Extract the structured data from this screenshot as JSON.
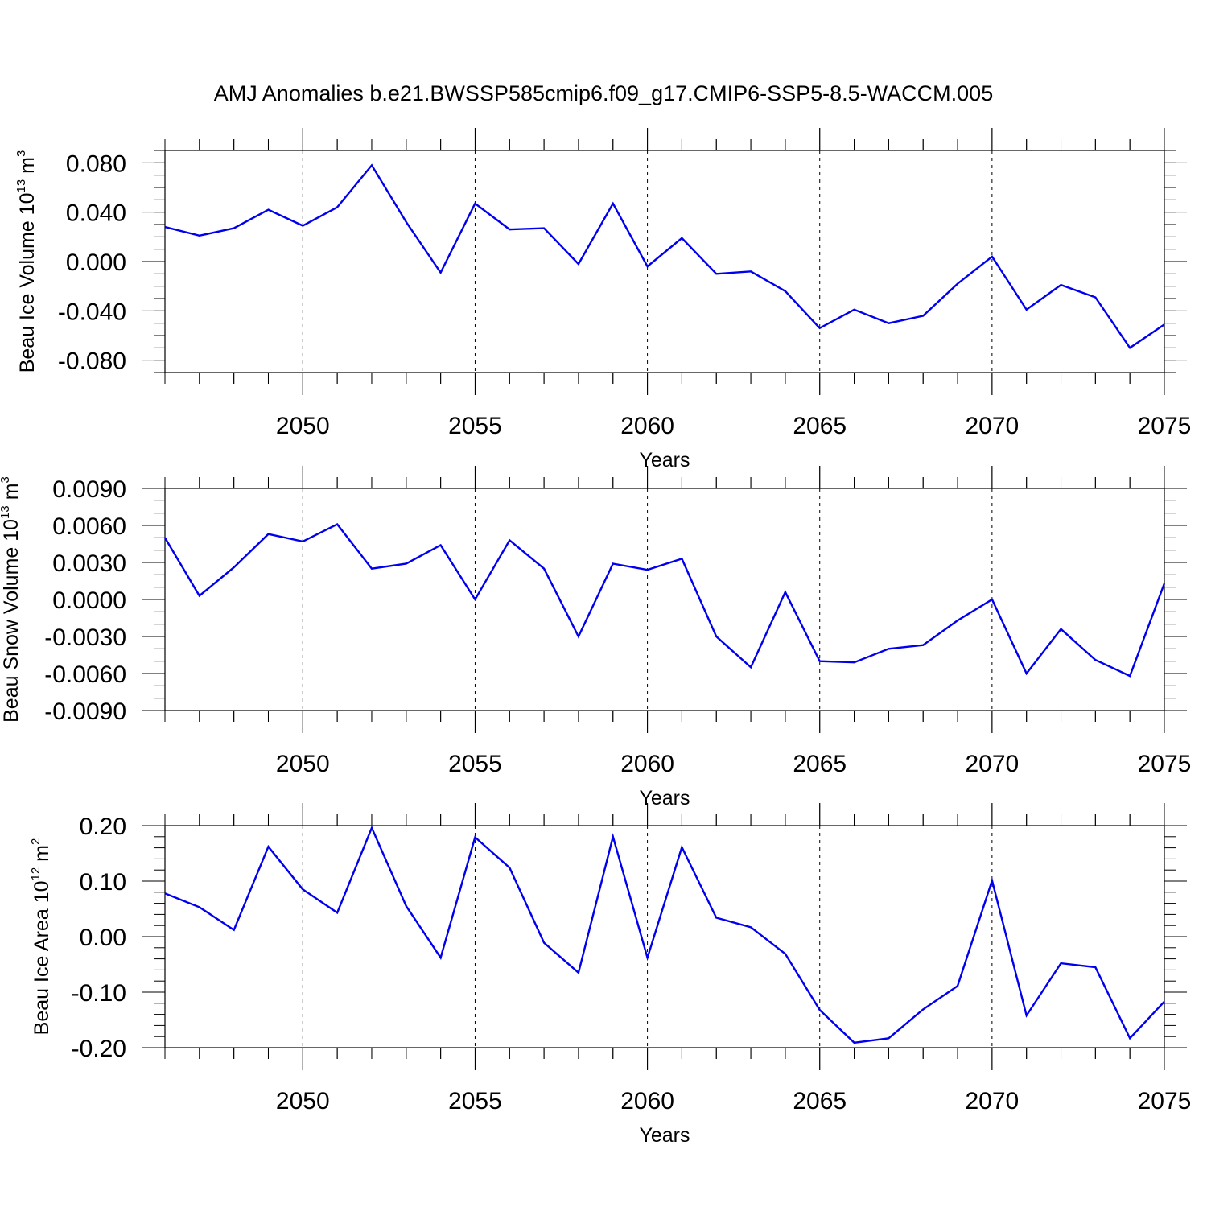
{
  "chart_data": [
    {
      "type": "line",
      "title": "AMJ Anomalies b.e21.BWSSP585cmip6.f09_g17.CMIP6-SSP5-8.5-WACCM.005",
      "xlabel": "Years",
      "ylabel": {
        "prefix": "Beau Ice Volume 10",
        "exp": "13",
        "unit": " m",
        "unit_exp": "3"
      },
      "xlim": [
        2046,
        2075
      ],
      "ylim": [
        -0.09,
        0.09
      ],
      "xticks": [
        2050,
        2055,
        2060,
        2065,
        2070,
        2075
      ],
      "yticks": [
        -0.08,
        -0.04,
        0.0,
        0.04,
        0.08
      ],
      "yticklabels": [
        "-0.080",
        "-0.040",
        "0.000",
        "0.040",
        "0.080"
      ],
      "y_minor_step": 0.01,
      "gridlines_x": [
        2050,
        2055,
        2060,
        2065,
        2070
      ],
      "line_color": "#0000ee",
      "series": [
        {
          "name": "Beau Ice Volume",
          "x": [
            2046,
            2047,
            2048,
            2049,
            2050,
            2051,
            2052,
            2053,
            2054,
            2055,
            2056,
            2057,
            2058,
            2059,
            2060,
            2061,
            2062,
            2063,
            2064,
            2065,
            2066,
            2067,
            2068,
            2069,
            2070,
            2071,
            2072,
            2073,
            2074,
            2075
          ],
          "values": [
            0.028,
            0.021,
            0.027,
            0.042,
            0.029,
            0.044,
            0.078,
            0.032,
            -0.009,
            0.047,
            0.026,
            0.027,
            -0.002,
            0.047,
            -0.004,
            0.019,
            -0.01,
            -0.008,
            -0.024,
            -0.054,
            -0.039,
            -0.05,
            -0.044,
            -0.018,
            0.004,
            -0.039,
            -0.019,
            -0.029,
            -0.07,
            -0.051
          ]
        }
      ]
    },
    {
      "type": "line",
      "title": "",
      "xlabel": "Years",
      "ylabel": {
        "prefix": "Beau Snow Volume 10",
        "exp": "13",
        "unit": " m",
        "unit_exp": "3"
      },
      "xlim": [
        2046,
        2075
      ],
      "ylim": [
        -0.009,
        0.009
      ],
      "xticks": [
        2050,
        2055,
        2060,
        2065,
        2070,
        2075
      ],
      "yticks": [
        -0.009,
        -0.006,
        -0.003,
        0.0,
        0.003,
        0.006,
        0.009
      ],
      "yticklabels": [
        "-0.0090",
        "-0.0060",
        "-0.0030",
        "0.0000",
        "0.0030",
        "0.0060",
        "0.0090"
      ],
      "y_minor_step": 0.001,
      "gridlines_x": [
        2050,
        2055,
        2060,
        2065,
        2070
      ],
      "line_color": "#0000ee",
      "series": [
        {
          "name": "Beau Snow Volume",
          "x": [
            2046,
            2047,
            2048,
            2049,
            2050,
            2051,
            2052,
            2053,
            2054,
            2055,
            2056,
            2057,
            2058,
            2059,
            2060,
            2061,
            2062,
            2063,
            2064,
            2065,
            2066,
            2067,
            2068,
            2069,
            2070,
            2071,
            2072,
            2073,
            2074,
            2075
          ],
          "values": [
            0.005,
            0.0003,
            0.0026,
            0.0053,
            0.0047,
            0.0061,
            0.0025,
            0.0029,
            0.0044,
            0.0,
            0.0048,
            0.0025,
            -0.003,
            0.0029,
            0.0024,
            0.0033,
            -0.003,
            -0.0055,
            0.0006,
            -0.005,
            -0.0051,
            -0.004,
            -0.0037,
            -0.0017,
            0.0,
            -0.006,
            -0.0024,
            -0.0049,
            -0.0062,
            0.0013
          ]
        }
      ]
    },
    {
      "type": "line",
      "title": "",
      "xlabel": "Years",
      "ylabel": {
        "prefix": "Beau Ice Area 10",
        "exp": "12",
        "unit": " m",
        "unit_exp": "2"
      },
      "xlim": [
        2046,
        2075
      ],
      "ylim": [
        -0.2,
        0.2
      ],
      "xticks": [
        2050,
        2055,
        2060,
        2065,
        2070,
        2075
      ],
      "yticks": [
        -0.2,
        -0.1,
        0.0,
        0.1,
        0.2
      ],
      "yticklabels": [
        "-0.20",
        "-0.10",
        "0.00",
        "0.10",
        "0.20"
      ],
      "y_minor_step": 0.02,
      "gridlines_x": [
        2050,
        2055,
        2060,
        2065,
        2070
      ],
      "line_color": "#0000ee",
      "series": [
        {
          "name": "Beau Ice Area",
          "x": [
            2046,
            2047,
            2048,
            2049,
            2050,
            2051,
            2052,
            2053,
            2054,
            2055,
            2056,
            2057,
            2058,
            2059,
            2060,
            2061,
            2062,
            2063,
            2064,
            2065,
            2066,
            2067,
            2068,
            2069,
            2070,
            2071,
            2072,
            2073,
            2074,
            2075
          ],
          "values": [
            0.078,
            0.053,
            0.012,
            0.162,
            0.085,
            0.043,
            0.196,
            0.055,
            -0.038,
            0.179,
            0.124,
            -0.011,
            -0.065,
            0.18,
            -0.038,
            0.161,
            0.034,
            0.017,
            -0.031,
            -0.132,
            -0.191,
            -0.183,
            -0.131,
            -0.089,
            0.101,
            -0.142,
            -0.048,
            -0.055,
            -0.183,
            -0.117
          ]
        }
      ]
    }
  ]
}
